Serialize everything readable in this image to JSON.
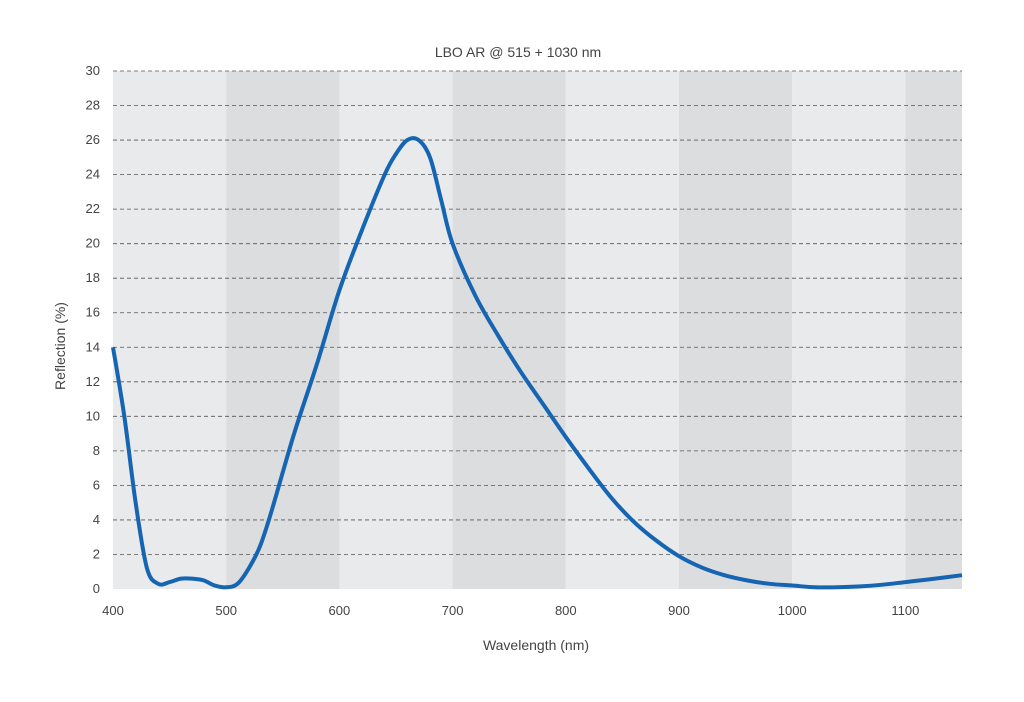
{
  "chart_data": {
    "type": "line",
    "title": "LBO AR @ 515 + 1030 nm",
    "xlabel": "Wavelength (nm)",
    "ylabel": "Reflection (%)",
    "xlim": [
      400,
      1150
    ],
    "ylim": [
      0,
      30
    ],
    "x_ticks": [
      "400",
      "500",
      "600",
      "700",
      "800",
      "900",
      "1000",
      "1100"
    ],
    "y_ticks": [
      "0",
      "2",
      "4",
      "6",
      "8",
      "10",
      "12",
      "14",
      "16",
      "18",
      "20",
      "22",
      "24",
      "26",
      "28",
      "30"
    ],
    "grid": "horizontal-dashed",
    "bands": "alternating-shaded-100nm",
    "colors": {
      "line": "#1565b3",
      "band_light": "#e9eaeb",
      "band_dark": "#dcddde",
      "grid": "#555555",
      "text": "#444444"
    },
    "series": [
      {
        "x": [
          400,
          410,
          420,
          430,
          440,
          450,
          460,
          470,
          480,
          490,
          500,
          510,
          520,
          530,
          540,
          560,
          580,
          600,
          620,
          640,
          650,
          660,
          670,
          680,
          690,
          700,
          720,
          740,
          760,
          780,
          800,
          820,
          840,
          860,
          880,
          900,
          920,
          940,
          960,
          980,
          1000,
          1020,
          1040,
          1060,
          1080,
          1100,
          1120,
          1150
        ],
        "values": [
          14.0,
          10.0,
          5.0,
          1.2,
          0.3,
          0.4,
          0.6,
          0.6,
          0.5,
          0.2,
          0.1,
          0.3,
          1.2,
          2.5,
          4.5,
          9.0,
          13.0,
          17.3,
          20.8,
          24.0,
          25.2,
          26.0,
          26.0,
          25.0,
          22.5,
          20.0,
          17.0,
          14.7,
          12.6,
          10.7,
          8.8,
          7.0,
          5.3,
          3.9,
          2.8,
          1.9,
          1.25,
          0.8,
          0.5,
          0.3,
          0.2,
          0.1,
          0.1,
          0.15,
          0.25,
          0.4,
          0.55,
          0.8
        ]
      }
    ]
  }
}
